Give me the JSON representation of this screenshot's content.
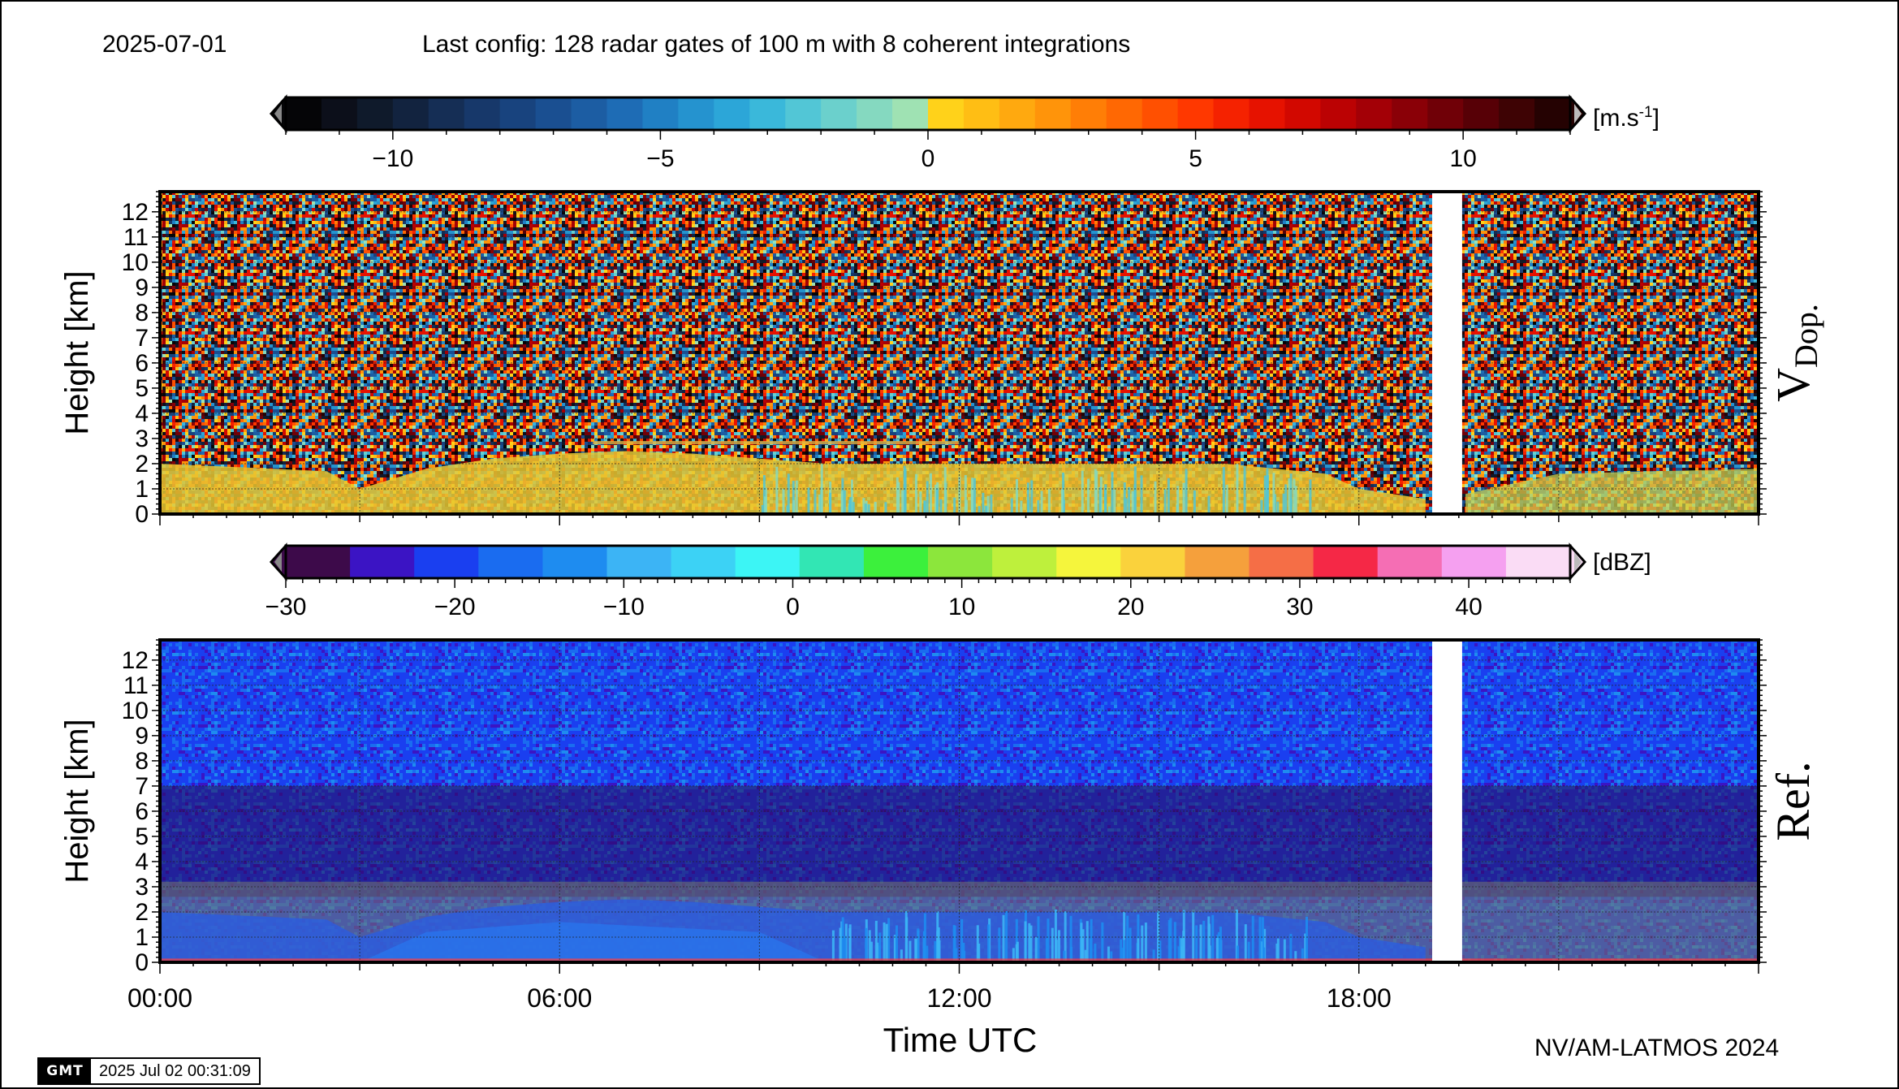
{
  "header": {
    "date": "2025-07-01",
    "config": "Last config: 128 radar gates of 100 m with 8 coherent integrations"
  },
  "footer": {
    "credit": "NV/AM-LATMOS 2024",
    "logo_text": "GMT",
    "stamp": "2025 Jul 02 00:31:09"
  },
  "chart_data": [
    {
      "type": "heatmap",
      "name": "Doppler velocity",
      "panel_label": "V",
      "panel_label_sub": "Dop.",
      "ylabel": "Height [km]",
      "xlabel": "",
      "xlim_hours": [
        0,
        24
      ],
      "ylim": [
        0,
        12.8
      ],
      "yticks": [
        0,
        1,
        2,
        3,
        4,
        5,
        6,
        7,
        8,
        9,
        10,
        11,
        12
      ],
      "xticks": [],
      "grid": true,
      "gap_hours": [
        19.1,
        19.55
      ],
      "colorbar": {
        "unit": "[m.s",
        "unit_sup": "-1",
        "unit_end": "]",
        "range": [
          -12,
          12
        ],
        "ticks": [
          -10,
          -5,
          0,
          5,
          10
        ],
        "tick_labels": [
          "−10",
          "−5",
          "0",
          "5",
          "10"
        ],
        "colors": [
          "#050507",
          "#0c0f1a",
          "#0f1a2b",
          "#12233f",
          "#152e55",
          "#17386a",
          "#18437e",
          "#1a4f91",
          "#1c5da3",
          "#1e6cb5",
          "#2080c4",
          "#2593cf",
          "#2ca6d8",
          "#3ab8da",
          "#52c6d6",
          "#6bd0cc",
          "#85d9c0",
          "#9fe2b3",
          "#ffd21a",
          "#ffbe14",
          "#ffa90f",
          "#ff940a",
          "#ff7e06",
          "#ff6803",
          "#ff5001",
          "#ff3800",
          "#f52200",
          "#e61200",
          "#d20800",
          "#bb0203",
          "#a30006",
          "#8a0007",
          "#700007",
          "#570006",
          "#3e0304",
          "#250202"
        ]
      }
    },
    {
      "type": "heatmap",
      "name": "Reflectivity",
      "panel_label": "Ref.",
      "ylabel": "Height [km]",
      "xlabel": "Time UTC",
      "xlim_hours": [
        0,
        24
      ],
      "ylim": [
        0,
        12.8
      ],
      "yticks": [
        0,
        1,
        2,
        3,
        4,
        5,
        6,
        7,
        8,
        9,
        10,
        11,
        12
      ],
      "xticks": [
        0,
        6,
        12,
        18
      ],
      "xtick_labels": [
        "00:00",
        "06:00",
        "12:00",
        "18:00"
      ],
      "grid": true,
      "gap_hours": [
        19.1,
        19.55
      ],
      "colorbar": {
        "unit": "[dBZ]",
        "range": [
          -30,
          46
        ],
        "ticks": [
          -30,
          -20,
          -10,
          0,
          10,
          20,
          30,
          40
        ],
        "tick_labels": [
          "−30",
          "−20",
          "−10",
          "0",
          "10",
          "20",
          "30",
          "40"
        ],
        "colors": [
          "#3d0a4a",
          "#3b14c4",
          "#1a3ff0",
          "#1a6cf0",
          "#1e8cf0",
          "#3cb4f5",
          "#3cd2f5",
          "#3cf5f5",
          "#32e6b4",
          "#3cf03c",
          "#8ce63c",
          "#bef03c",
          "#f5f53c",
          "#fad23c",
          "#f5a03c",
          "#f56e46",
          "#f52846",
          "#f56eb4",
          "#f5a0f0",
          "#fadcf5"
        ]
      }
    }
  ]
}
